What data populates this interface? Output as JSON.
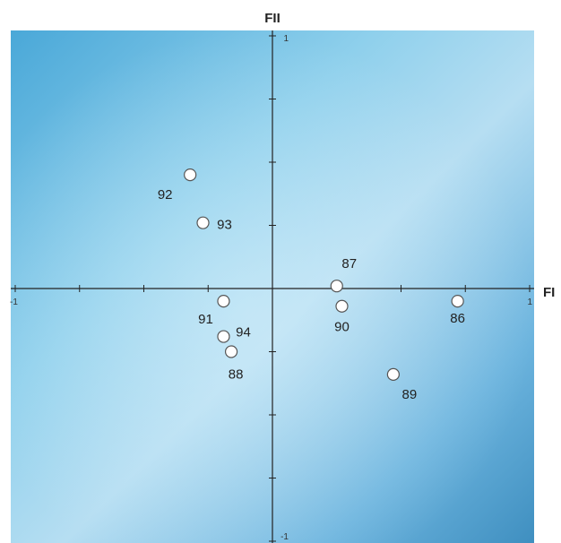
{
  "chart_data": {
    "type": "scatter",
    "xlabel": "FI",
    "ylabel": "FII",
    "xlim": [
      -1,
      1
    ],
    "ylim": [
      -1,
      1
    ],
    "x_tick_labels": {
      "min": "-1",
      "max": "1"
    },
    "y_tick_labels": {
      "min": "-1",
      "max": "1"
    },
    "grid": false,
    "background": "blue-gradient",
    "colors": {
      "panel_light": "#b9e2f3",
      "panel_mid": "#8fd0ec",
      "panel_dark": "#3f8fc0",
      "point_fill": "#ffffff",
      "axis": "#222222"
    },
    "points": [
      {
        "label": "86",
        "x": 0.72,
        "y": -0.05
      },
      {
        "label": "87",
        "x": 0.25,
        "y": 0.01
      },
      {
        "label": "88",
        "x": -0.16,
        "y": -0.25
      },
      {
        "label": "89",
        "x": 0.47,
        "y": -0.34
      },
      {
        "label": "90",
        "x": 0.27,
        "y": -0.07
      },
      {
        "label": "91",
        "x": -0.19,
        "y": -0.05
      },
      {
        "label": "92",
        "x": -0.32,
        "y": 0.45
      },
      {
        "label": "93",
        "x": -0.27,
        "y": 0.26
      },
      {
        "label": "94",
        "x": -0.19,
        "y": -0.19
      }
    ]
  }
}
